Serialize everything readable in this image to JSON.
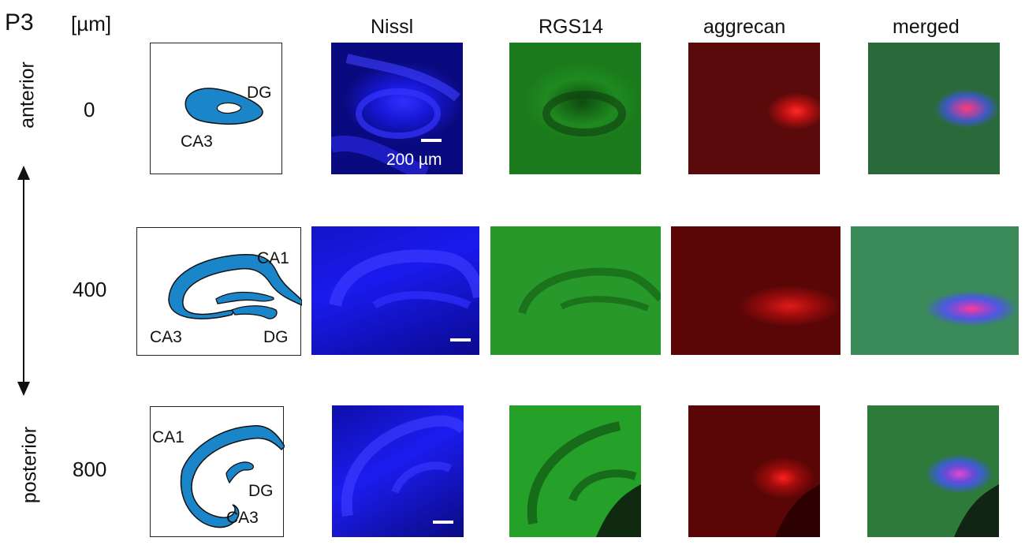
{
  "figure": {
    "age_label": "P3",
    "unit_label": "[µm]",
    "columns": [
      "Nissl",
      "RGS14",
      "aggrecan",
      "merged"
    ],
    "axis": {
      "top": "anterior",
      "bottom": "posterior"
    },
    "rows": [
      {
        "depth": "0",
        "schematic_labels": [
          "DG",
          "CA3"
        ]
      },
      {
        "depth": "400",
        "schematic_labels": [
          "CA1",
          "CA3",
          "DG"
        ]
      },
      {
        "depth": "800",
        "schematic_labels": [
          "CA1",
          "DG",
          "CA3"
        ]
      }
    ],
    "scale_bar": "200 µm"
  },
  "colors": {
    "nissl": "#1a1aff",
    "rgs14": "#1f8a1f",
    "aggrecan": "#b01010",
    "schematic_fill": "#1a85c8"
  }
}
